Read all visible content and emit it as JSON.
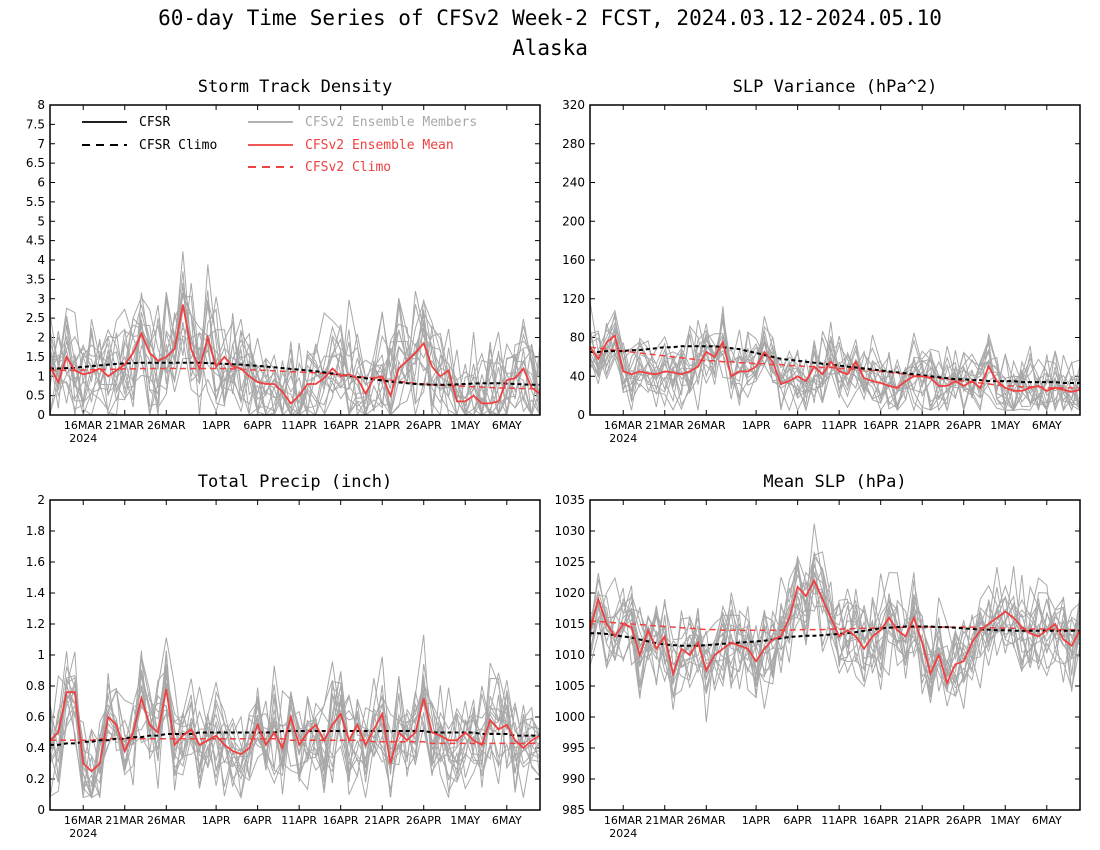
{
  "title": "60-day Time Series of CFSv2 Week-2 FCST, 2024.03.12-2024.05.10",
  "subtitle": "Alaska",
  "colors": {
    "cfsr": "#000000",
    "members": "#a8a8a8",
    "ens_mean": "#f04040",
    "cfsv2_climo": "#f04040"
  },
  "legend": [
    {
      "label": "CFSR",
      "style": "solid",
      "color": "#000000"
    },
    {
      "label": "CFSR Climo",
      "style": "dashed",
      "color": "#000000"
    },
    {
      "label": "CFSv2 Ensemble Members",
      "style": "solid",
      "color": "#a8a8a8"
    },
    {
      "label": "CFSv2 Ensemble Mean",
      "style": "solid",
      "color": "#f04040"
    },
    {
      "label": "CFSv2 Climo",
      "style": "dashed",
      "color": "#f04040"
    }
  ],
  "x_ticks": [
    "16MAR",
    "21MAR",
    "26MAR",
    "1APR",
    "6APR",
    "11APR",
    "16APR",
    "21APR",
    "26APR",
    "1MAY",
    "6MAY"
  ],
  "x_tick_days": [
    4,
    9,
    14,
    20,
    25,
    30,
    35,
    40,
    45,
    50,
    55
  ],
  "x_year": "2024",
  "chart_data": [
    {
      "type": "line",
      "title": "Storm Track Density",
      "ylim": [
        0,
        8
      ],
      "yticks": [
        "0",
        "0.5",
        "1",
        "1.5",
        "2",
        "2.5",
        "3",
        "3.5",
        "4",
        "4.5",
        "5",
        "5.5",
        "6",
        "6.5",
        "7",
        "7.5",
        "8"
      ],
      "x_start": "2024-03-12",
      "n_days": 60,
      "series": [
        {
          "name": "CFSv2 Ensemble Mean",
          "values": [
            1.25,
            0.85,
            1.5,
            1.15,
            1.05,
            1.1,
            1.2,
            1.0,
            1.15,
            1.3,
            1.6,
            2.1,
            1.6,
            1.4,
            1.5,
            1.7,
            2.85,
            1.7,
            1.2,
            2.0,
            1.25,
            1.5,
            1.25,
            1.2,
            1.0,
            0.85,
            0.8,
            0.8,
            0.6,
            0.3,
            0.5,
            0.8,
            0.8,
            0.95,
            1.2,
            1.0,
            1.05,
            0.95,
            0.55,
            0.95,
            1.0,
            0.5,
            1.2,
            1.4,
            1.6,
            1.85,
            1.25,
            1.0,
            1.15,
            0.35,
            0.35,
            0.5,
            0.3,
            0.3,
            0.35,
            0.9,
            0.95,
            1.2,
            0.7,
            0.55
          ]
        },
        {
          "name": "CFSR Climo",
          "values": [
            1.2,
            1.2,
            1.21,
            1.22,
            1.24,
            1.26,
            1.28,
            1.3,
            1.32,
            1.33,
            1.34,
            1.35,
            1.35,
            1.35,
            1.35,
            1.35,
            1.35,
            1.35,
            1.35,
            1.34,
            1.33,
            1.32,
            1.31,
            1.3,
            1.28,
            1.27,
            1.25,
            1.23,
            1.21,
            1.19,
            1.17,
            1.15,
            1.13,
            1.1,
            1.07,
            1.04,
            1.01,
            0.98,
            0.95,
            0.92,
            0.89,
            0.86,
            0.84,
            0.82,
            0.8,
            0.79,
            0.78,
            0.78,
            0.78,
            0.79,
            0.8,
            0.81,
            0.82,
            0.82,
            0.82,
            0.81,
            0.8,
            0.79,
            0.78,
            0.78
          ]
        },
        {
          "name": "CFSv2 Climo",
          "values": [
            1.15,
            1.15,
            1.15,
            1.15,
            1.16,
            1.17,
            1.17,
            1.18,
            1.18,
            1.19,
            1.19,
            1.2,
            1.2,
            1.2,
            1.2,
            1.2,
            1.2,
            1.2,
            1.2,
            1.2,
            1.2,
            1.2,
            1.19,
            1.18,
            1.17,
            1.16,
            1.15,
            1.14,
            1.13,
            1.12,
            1.11,
            1.1,
            1.09,
            1.07,
            1.05,
            1.03,
            1.01,
            0.99,
            0.97,
            0.95,
            0.93,
            0.9,
            0.87,
            0.84,
            0.82,
            0.8,
            0.78,
            0.77,
            0.76,
            0.75,
            0.74,
            0.73,
            0.72,
            0.71,
            0.7,
            0.69,
            0.69,
            0.68,
            0.68,
            0.68
          ]
        }
      ],
      "members": {
        "count": 16,
        "spread": 0.75,
        "min": 0
      }
    },
    {
      "type": "line",
      "title": "SLP Variance (hPa^2)",
      "ylim": [
        0,
        320
      ],
      "yticks": [
        "0",
        "40",
        "80",
        "120",
        "160",
        "200",
        "240",
        "280",
        "320"
      ],
      "x_start": "2024-03-12",
      "n_days": 60,
      "series": [
        {
          "name": "CFSv2 Ensemble Mean",
          "values": [
            70,
            58,
            75,
            82,
            45,
            42,
            45,
            43,
            42,
            45,
            44,
            42,
            45,
            50,
            65,
            60,
            75,
            40,
            45,
            45,
            50,
            65,
            55,
            32,
            35,
            40,
            35,
            50,
            42,
            55,
            45,
            42,
            55,
            38,
            35,
            33,
            30,
            28,
            35,
            40,
            40,
            38,
            30,
            30,
            35,
            30,
            35,
            28,
            50,
            35,
            28,
            25,
            25,
            28,
            30,
            25,
            28,
            26,
            24,
            26
          ]
        },
        {
          "name": "CFSR Climo",
          "values": [
            65,
            65,
            66,
            66,
            66,
            67,
            67,
            68,
            69,
            70,
            70,
            71,
            71,
            71,
            71,
            71,
            70,
            69,
            68,
            66,
            64,
            62,
            60,
            58,
            57,
            56,
            55,
            54,
            53,
            52,
            51,
            50,
            49,
            48,
            47,
            46,
            45,
            44,
            43,
            42,
            41,
            40,
            39,
            38,
            37,
            37,
            36,
            36,
            35,
            35,
            35,
            35,
            34,
            34,
            34,
            34,
            34,
            33,
            33,
            33
          ]
        },
        {
          "name": "CFSv2 Climo",
          "values": [
            70,
            69,
            68,
            67,
            66,
            65,
            64,
            63,
            62,
            61,
            60,
            59,
            58,
            57,
            56,
            56,
            55,
            55,
            54,
            54,
            53,
            53,
            52,
            52,
            51,
            51,
            50,
            50,
            49,
            49,
            48,
            48,
            47,
            47,
            46,
            45,
            44,
            43,
            42,
            41,
            40,
            39,
            38,
            37,
            36,
            35,
            34,
            33,
            32,
            31,
            30,
            30,
            29,
            29,
            29,
            28,
            28,
            28,
            28,
            28
          ]
        }
      ],
      "members": {
        "count": 16,
        "spread": 18,
        "min": 5
      }
    },
    {
      "type": "line",
      "title": "Total Precip (inch)",
      "ylim": [
        0,
        2
      ],
      "yticks": [
        "0",
        "0.2",
        "0.4",
        "0.6",
        "0.8",
        "1",
        "1.2",
        "1.4",
        "1.6",
        "1.8",
        "2"
      ],
      "x_start": "2024-03-12",
      "n_days": 60,
      "series": [
        {
          "name": "CFSv2 Ensemble Mean",
          "values": [
            0.45,
            0.5,
            0.76,
            0.76,
            0.3,
            0.25,
            0.3,
            0.6,
            0.55,
            0.38,
            0.5,
            0.72,
            0.55,
            0.5,
            0.78,
            0.42,
            0.48,
            0.52,
            0.42,
            0.45,
            0.48,
            0.42,
            0.38,
            0.36,
            0.4,
            0.55,
            0.42,
            0.5,
            0.4,
            0.6,
            0.42,
            0.5,
            0.55,
            0.45,
            0.55,
            0.62,
            0.45,
            0.55,
            0.42,
            0.52,
            0.62,
            0.3,
            0.5,
            0.45,
            0.5,
            0.72,
            0.5,
            0.48,
            0.45,
            0.45,
            0.5,
            0.45,
            0.42,
            0.58,
            0.52,
            0.55,
            0.45,
            0.4,
            0.45,
            0.48
          ]
        },
        {
          "name": "CFSR Climo",
          "values": [
            0.42,
            0.42,
            0.43,
            0.43,
            0.44,
            0.44,
            0.45,
            0.45,
            0.46,
            0.46,
            0.47,
            0.47,
            0.48,
            0.48,
            0.49,
            0.49,
            0.49,
            0.49,
            0.5,
            0.5,
            0.5,
            0.5,
            0.5,
            0.5,
            0.5,
            0.5,
            0.5,
            0.5,
            0.51,
            0.51,
            0.51,
            0.51,
            0.51,
            0.51,
            0.51,
            0.51,
            0.51,
            0.51,
            0.51,
            0.51,
            0.51,
            0.51,
            0.51,
            0.51,
            0.51,
            0.51,
            0.5,
            0.5,
            0.5,
            0.5,
            0.5,
            0.5,
            0.49,
            0.49,
            0.49,
            0.49,
            0.48,
            0.48,
            0.48,
            0.48
          ]
        },
        {
          "name": "CFSv2 Climo",
          "values": [
            0.45,
            0.45,
            0.45,
            0.45,
            0.45,
            0.45,
            0.46,
            0.46,
            0.46,
            0.46,
            0.46,
            0.46,
            0.46,
            0.46,
            0.46,
            0.46,
            0.46,
            0.46,
            0.46,
            0.46,
            0.46,
            0.46,
            0.46,
            0.46,
            0.46,
            0.46,
            0.46,
            0.46,
            0.46,
            0.45,
            0.45,
            0.45,
            0.45,
            0.45,
            0.45,
            0.45,
            0.45,
            0.45,
            0.45,
            0.44,
            0.44,
            0.44,
            0.44,
            0.44,
            0.44,
            0.44,
            0.43,
            0.43,
            0.43,
            0.43,
            0.43,
            0.43,
            0.43,
            0.43,
            0.43,
            0.43,
            0.43,
            0.43,
            0.43,
            0.43
          ]
        }
      ],
      "members": {
        "count": 16,
        "spread": 0.16,
        "min": 0.08
      }
    },
    {
      "type": "line",
      "title": "Mean SLP (hPa)",
      "ylim": [
        985,
        1035
      ],
      "yticks": [
        "985",
        "990",
        "995",
        "1000",
        "1005",
        "1010",
        "1015",
        "1020",
        "1025",
        "1030",
        "1035"
      ],
      "x_start": "2024-03-12",
      "n_days": 60,
      "series": [
        {
          "name": "CFSv2 Ensemble Mean",
          "values": [
            1014,
            1019,
            1015,
            1013,
            1015,
            1014.5,
            1010,
            1014,
            1011,
            1013,
            1007,
            1011,
            1010,
            1012,
            1007.5,
            1010,
            1011,
            1012,
            1011.5,
            1011,
            1009,
            1011,
            1012.5,
            1013,
            1016,
            1021,
            1019.5,
            1022,
            1019,
            1016,
            1013,
            1014,
            1013,
            1011,
            1013,
            1014,
            1016,
            1014,
            1013,
            1016,
            1012,
            1007,
            1010,
            1005.5,
            1008.5,
            1009,
            1012,
            1014,
            1015,
            1016,
            1017,
            1016,
            1014.5,
            1013.5,
            1013,
            1014,
            1015,
            1012.5,
            1011.5,
            1014
          ]
        },
        {
          "name": "CFSR Climo",
          "values": [
            1013.5,
            1013.5,
            1013.4,
            1013.2,
            1013,
            1012.8,
            1012.5,
            1012.2,
            1011.9,
            1011.7,
            1011.6,
            1011.5,
            1011.5,
            1011.5,
            1011.6,
            1011.7,
            1011.8,
            1011.9,
            1012,
            1012.1,
            1012.2,
            1012.3,
            1012.5,
            1012.7,
            1012.9,
            1013,
            1013.1,
            1013.1,
            1013.2,
            1013.3,
            1013.4,
            1013.5,
            1013.7,
            1013.9,
            1014.1,
            1014.3,
            1014.4,
            1014.5,
            1014.6,
            1014.6,
            1014.6,
            1014.6,
            1014.5,
            1014.5,
            1014.4,
            1014.3,
            1014.2,
            1014.1,
            1014.1,
            1014,
            1014,
            1013.9,
            1013.9,
            1013.9,
            1013.9,
            1013.9,
            1013.9,
            1013.9,
            1013.9,
            1013.9
          ]
        },
        {
          "name": "CFSv2 Climo",
          "values": [
            1015.5,
            1015.4,
            1015.3,
            1015.2,
            1015.1,
            1015,
            1014.9,
            1014.8,
            1014.7,
            1014.6,
            1014.5,
            1014.4,
            1014.3,
            1014.2,
            1014.1,
            1014.1,
            1014,
            1014,
            1014,
            1014,
            1014,
            1014,
            1014,
            1014,
            1014,
            1014.1,
            1014.1,
            1014.1,
            1014.1,
            1014.2,
            1014.2,
            1014.2,
            1014.3,
            1014.3,
            1014.3,
            1014.4,
            1014.4,
            1014.4,
            1014.5,
            1014.5,
            1014.5,
            1014.5,
            1014.5,
            1014.5,
            1014.5,
            1014.5,
            1014.5,
            1014.4,
            1014.4,
            1014.4,
            1014.3,
            1014.3,
            1014.3,
            1014.2,
            1014.2,
            1014.2,
            1014.1,
            1014.1,
            1014.1,
            1014.1
          ]
        }
      ],
      "members": {
        "count": 16,
        "spread": 3.6,
        "min": 985
      }
    }
  ]
}
